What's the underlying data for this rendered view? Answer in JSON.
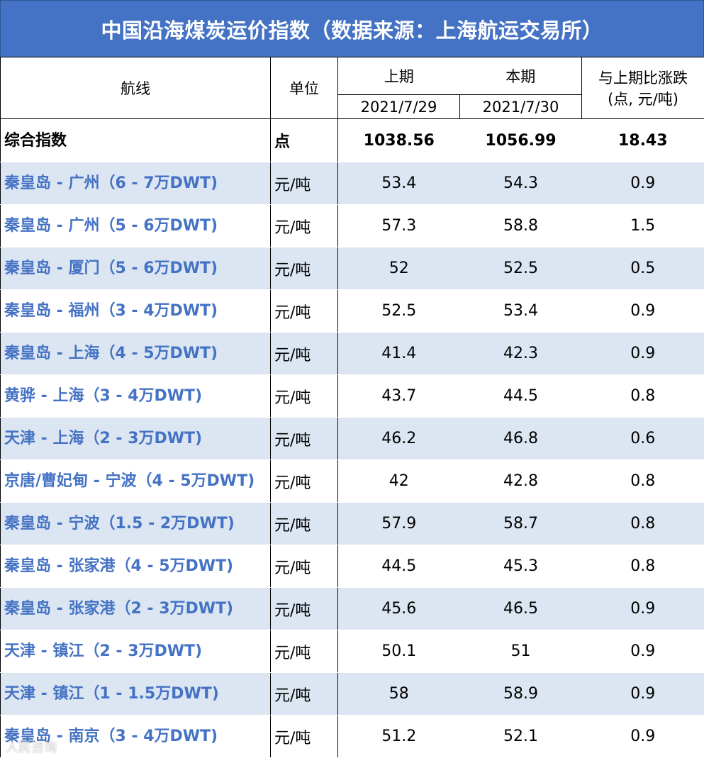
{
  "title": "中国沿海煤炭运价指数（数据来源：上海航运交易所）",
  "headers": {
    "route": "航线",
    "unit": "单位",
    "prev": "上期",
    "curr": "本期",
    "change": "与上期比涨跌",
    "change_unit": "(点, 元/吨)",
    "prev_date": "2021/7/29",
    "curr_date": "2021/7/30"
  },
  "summary": {
    "route": "综合指数",
    "unit": "点",
    "prev": "1038.56",
    "curr": "1056.99",
    "change": "18.43"
  },
  "rows": [
    {
      "route": "秦皇岛 - 广州（6 - 7万DWT)",
      "unit": "元/吨",
      "prev": "53.4",
      "curr": "54.3",
      "change": "0.9"
    },
    {
      "route": "秦皇岛 - 广州（5 - 6万DWT)",
      "unit": "元/吨",
      "prev": "57.3",
      "curr": "58.8",
      "change": "1.5"
    },
    {
      "route": "秦皇岛 - 厦门（5 - 6万DWT)",
      "unit": "元/吨",
      "prev": "52",
      "curr": "52.5",
      "change": "0.5"
    },
    {
      "route": "秦皇岛 - 福州（3 - 4万DWT)",
      "unit": "元/吨",
      "prev": "52.5",
      "curr": "53.4",
      "change": "0.9"
    },
    {
      "route": "秦皇岛 - 上海（4 - 5万DWT)",
      "unit": "元/吨",
      "prev": "41.4",
      "curr": "42.3",
      "change": "0.9"
    },
    {
      "route": "黄骅 - 上海（3 - 4万DWT)",
      "unit": "元/吨",
      "prev": "43.7",
      "curr": "44.5",
      "change": "0.8"
    },
    {
      "route": "天津 - 上海（2 - 3万DWT)",
      "unit": "元/吨",
      "prev": "46.2",
      "curr": "46.8",
      "change": "0.6"
    },
    {
      "route": "京唐/曹妃甸 - 宁波（4 - 5万DWT)",
      "unit": "元/吨",
      "prev": "42",
      "curr": "42.8",
      "change": "0.8"
    },
    {
      "route": "秦皇岛 - 宁波（1.5 - 2万DWT)",
      "unit": "元/吨",
      "prev": "57.9",
      "curr": "58.7",
      "change": "0.8"
    },
    {
      "route": "秦皇岛 - 张家港（4 - 5万DWT)",
      "unit": "元/吨",
      "prev": "44.5",
      "curr": "45.3",
      "change": "0.8"
    },
    {
      "route": "秦皇岛 - 张家港（2 - 3万DWT)",
      "unit": "元/吨",
      "prev": "45.6",
      "curr": "46.5",
      "change": "0.9"
    },
    {
      "route": "天津 - 镇江（2 - 3万DWT)",
      "unit": "元/吨",
      "prev": "50.1",
      "curr": "51",
      "change": "0.9"
    },
    {
      "route": "天津 - 镇江（1 - 1.5万DWT)",
      "unit": "元/吨",
      "prev": "58",
      "curr": "58.9",
      "change": "0.9"
    },
    {
      "route": "秦皇岛 - 南京（3 - 4万DWT)",
      "unit": "元/吨",
      "prev": "51.2",
      "curr": "52.1",
      "change": "0.9"
    }
  ],
  "watermark": "人民咨询"
}
